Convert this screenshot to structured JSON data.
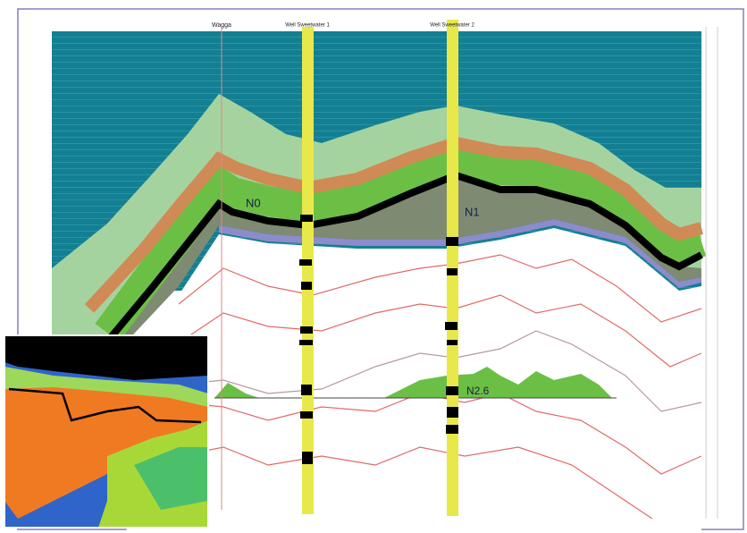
{
  "top_labels": [
    "Wagga",
    "Well Sweetwater 1",
    "Well Sweetwater 2"
  ],
  "horizons": [
    "N0",
    "N1",
    "N2.6"
  ]
}
